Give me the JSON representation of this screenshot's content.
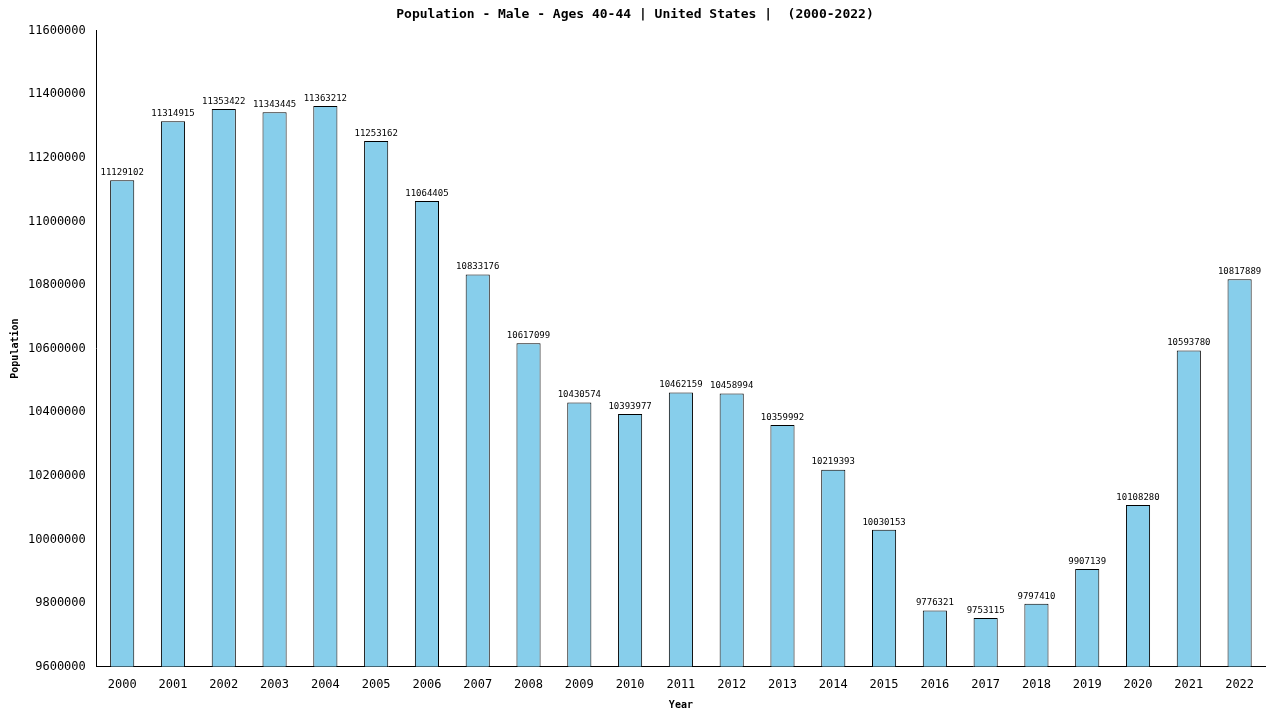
{
  "chart_data": {
    "type": "bar",
    "title": "Population - Male - Ages 40-44 | United States |  (2000-2022)",
    "x_label": "Year",
    "y_label": "Population",
    "categories": [
      "2000",
      "2001",
      "2002",
      "2003",
      "2004",
      "2005",
      "2006",
      "2007",
      "2008",
      "2009",
      "2010",
      "2011",
      "2012",
      "2013",
      "2014",
      "2015",
      "2016",
      "2017",
      "2018",
      "2019",
      "2020",
      "2021",
      "2022"
    ],
    "values": [
      11129102,
      11314915,
      11353422,
      11343445,
      11363212,
      11253162,
      11064405,
      10833176,
      10617099,
      10430574,
      10393977,
      10462159,
      10458994,
      10359992,
      10219393,
      10030153,
      9776321,
      9753115,
      9797410,
      9907139,
      10108280,
      10593780,
      10817889
    ],
    "color": "#87ceeb",
    "ylim": [
      9600000,
      11600000
    ],
    "yticks": [
      9600000,
      9800000,
      10000000,
      10200000,
      10400000,
      10600000,
      10800000,
      11000000,
      11200000,
      11400000,
      11600000
    ],
    "grid": false,
    "data_labels": true
  }
}
